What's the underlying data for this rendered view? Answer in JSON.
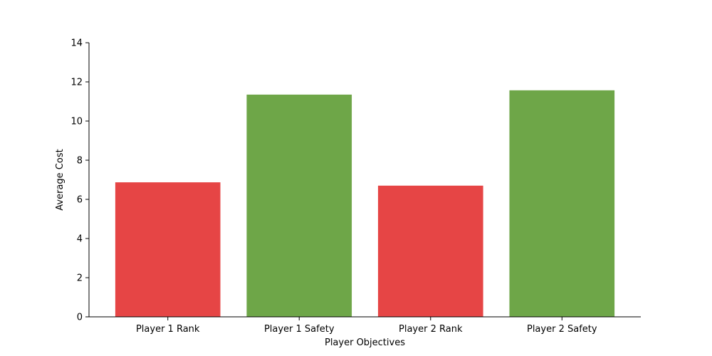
{
  "chart_data": {
    "type": "bar",
    "title": "",
    "xlabel": "Player Objectives",
    "ylabel": "Average Cost",
    "categories": [
      "Player 1 Rank",
      "Player 1 Safety",
      "Player 2 Rank",
      "Player 2 Safety"
    ],
    "values": [
      6.87,
      11.35,
      6.7,
      11.57
    ],
    "bar_colors": [
      "#e64545",
      "#6ea648",
      "#e64545",
      "#6ea648"
    ],
    "ylim": [
      0,
      14
    ],
    "yticks": [
      0,
      2,
      4,
      6,
      8,
      10,
      12,
      14
    ],
    "grid": false,
    "legend": "none"
  }
}
